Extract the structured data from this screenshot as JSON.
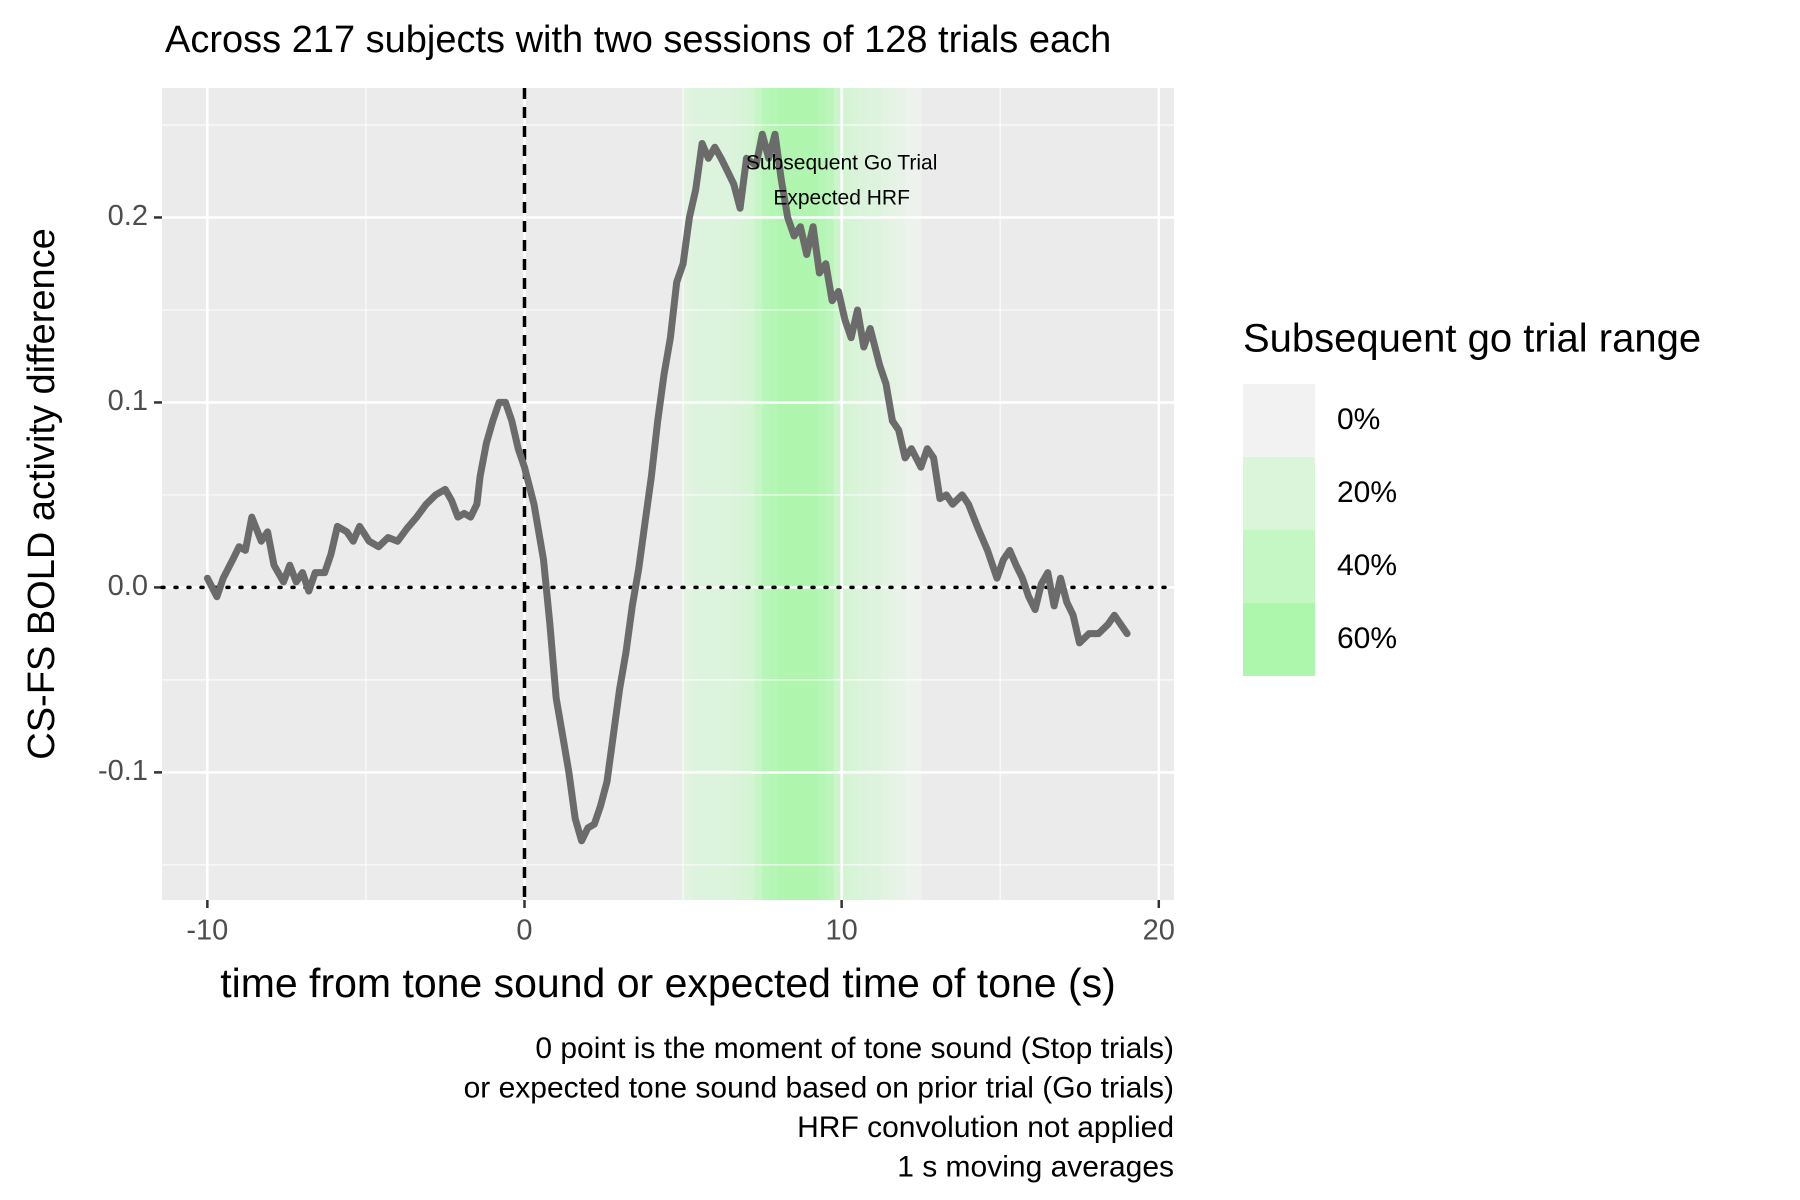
{
  "chart_data": {
    "type": "line",
    "title": "Across 217 subjects with two sessions of 128 trials each",
    "x_label": "time from tone sound or expected time of tone (s)",
    "y_label": "CS-FS BOLD activity difference",
    "caption": [
      "0 point is the moment of tone sound (Stop trials)",
      "or expected tone sound based on prior trial (Go trials)",
      "HRF convolution not applied",
      "1 s moving averages"
    ],
    "xlim": [
      -11.43,
      20.48
    ],
    "ylim": [
      -0.169,
      0.27
    ],
    "xticks": [
      -10,
      0,
      10,
      20
    ],
    "yticks": [
      -0.1,
      {
        "value": 0,
        "label": "0.0"
      },
      0.1,
      0.2
    ],
    "minor_xticks": [
      -5,
      5,
      15
    ],
    "minor_yticks": [
      -0.15,
      -0.05,
      0.05,
      0.15,
      0.25
    ],
    "grid": true,
    "vline": 0,
    "hline": 0,
    "x": [
      -10,
      -9.7,
      -9.5,
      -9.2,
      -9.0,
      -8.8,
      -8.6,
      -8.3,
      -8.1,
      -7.9,
      -7.6,
      -7.4,
      -7.2,
      -7.0,
      -6.8,
      -6.6,
      -6.3,
      -6.1,
      -5.9,
      -5.6,
      -5.4,
      -5.2,
      -4.9,
      -4.6,
      -4.3,
      -4.0,
      -3.7,
      -3.4,
      -3.1,
      -2.8,
      -2.5,
      -2.3,
      -2.1,
      -1.9,
      -1.7,
      -1.5,
      -1.4,
      -1.2,
      -1.0,
      -0.8,
      -0.6,
      -0.4,
      -0.2,
      0.0,
      0.3,
      0.6,
      0.8,
      1.0,
      1.2,
      1.4,
      1.6,
      1.8,
      2.0,
      2.2,
      2.4,
      2.6,
      2.8,
      3.0,
      3.2,
      3.4,
      3.6,
      3.8,
      4.0,
      4.2,
      4.4,
      4.6,
      4.8,
      5.0,
      5.2,
      5.4,
      5.6,
      5.8,
      6.0,
      6.2,
      6.4,
      6.6,
      6.8,
      7.0,
      7.3,
      7.5,
      7.7,
      7.9,
      8.1,
      8.3,
      8.5,
      8.7,
      8.9,
      9.1,
      9.3,
      9.5,
      9.7,
      9.9,
      10.1,
      10.3,
      10.5,
      10.7,
      10.9,
      11.2,
      11.4,
      11.6,
      11.8,
      12.0,
      12.2,
      12.5,
      12.7,
      12.9,
      13.1,
      13.3,
      13.5,
      13.8,
      14.0,
      14.3,
      14.6,
      14.9,
      15.1,
      15.3,
      15.5,
      15.7,
      15.9,
      16.1,
      16.3,
      16.5,
      16.7,
      16.9,
      17.1,
      17.3,
      17.5,
      17.8,
      18.1,
      18.4,
      18.6,
      18.8,
      19.0
    ],
    "series": [
      {
        "color": "#6b6b6b",
        "values": [
          0.005,
          -0.005,
          0.005,
          0.015,
          0.022,
          0.02,
          0.038,
          0.025,
          0.03,
          0.012,
          0.003,
          0.012,
          0.003,
          0.008,
          -0.002,
          0.008,
          0.008,
          0.018,
          0.033,
          0.03,
          0.025,
          0.033,
          0.025,
          0.022,
          0.027,
          0.025,
          0.032,
          0.038,
          0.045,
          0.05,
          0.053,
          0.047,
          0.038,
          0.04,
          0.038,
          0.045,
          0.06,
          0.078,
          0.09,
          0.1,
          0.1,
          0.09,
          0.075,
          0.065,
          0.045,
          0.015,
          -0.02,
          -0.06,
          -0.08,
          -0.1,
          -0.125,
          -0.137,
          -0.13,
          -0.128,
          -0.118,
          -0.105,
          -0.08,
          -0.055,
          -0.035,
          -0.01,
          0.01,
          0.035,
          0.06,
          0.09,
          0.115,
          0.135,
          0.165,
          0.175,
          0.2,
          0.215,
          0.24,
          0.232,
          0.238,
          0.232,
          0.225,
          0.218,
          0.205,
          0.232,
          0.228,
          0.245,
          0.232,
          0.245,
          0.22,
          0.2,
          0.19,
          0.195,
          0.18,
          0.195,
          0.17,
          0.175,
          0.155,
          0.16,
          0.145,
          0.135,
          0.15,
          0.13,
          0.14,
          0.12,
          0.11,
          0.09,
          0.085,
          0.07,
          0.075,
          0.065,
          0.075,
          0.07,
          0.048,
          0.05,
          0.045,
          0.05,
          0.045,
          0.032,
          0.02,
          0.005,
          0.015,
          0.02,
          0.012,
          0.005,
          -0.005,
          -0.012,
          0.002,
          0.008,
          -0.01,
          0.005,
          -0.008,
          -0.015,
          -0.03,
          -0.025,
          -0.025,
          -0.02,
          -0.015,
          -0.02,
          -0.025
        ]
      }
    ],
    "band": {
      "x": [
        5.0,
        5.25,
        5.5,
        5.75,
        6.0,
        6.25,
        6.5,
        6.75,
        7.0,
        7.25,
        7.5,
        7.75,
        8.0,
        8.25,
        8.5,
        8.75,
        9.0,
        9.25,
        9.5,
        9.75,
        10.0,
        10.25,
        10.5,
        10.75,
        11.0,
        11.25,
        11.5,
        11.75,
        12.0,
        12.25,
        12.5
      ],
      "values": [
        15,
        18,
        20,
        20,
        20,
        20,
        22,
        25,
        30,
        45,
        58,
        62,
        65,
        65,
        65,
        65,
        65,
        62,
        55,
        40,
        30,
        25,
        22,
        20,
        18,
        15,
        12,
        8,
        5,
        3,
        0
      ]
    },
    "annotations": [
      {
        "text": "Subsequent Go Trial",
        "x": 10,
        "y": 0.229
      },
      {
        "text": "Expected HRF",
        "x": 10,
        "y": 0.21
      }
    ],
    "legend": {
      "title": "Subsequent go trial range",
      "breaks": [
        {
          "value": 0,
          "label": "0%"
        },
        {
          "value": 20,
          "label": "20%"
        },
        {
          "value": 40,
          "label": "40%"
        },
        {
          "value": 60,
          "label": "60%"
        }
      ],
      "colors": [
        "#f2f2f2",
        "#daf5da",
        "#c5f7c5",
        "#adf7ad"
      ]
    }
  }
}
